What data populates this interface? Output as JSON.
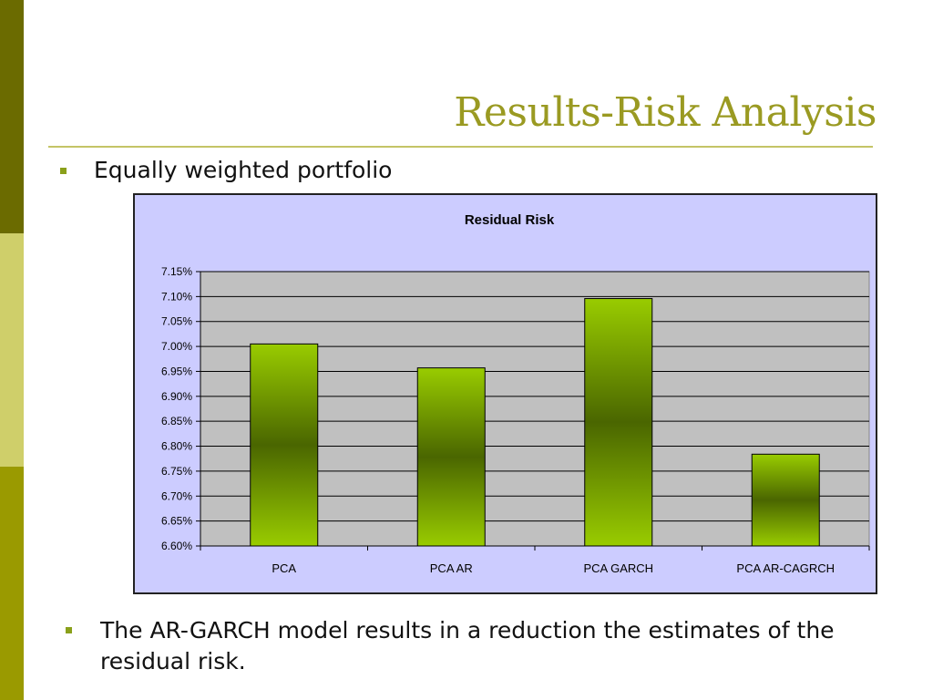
{
  "slide": {
    "title": "Results-Risk Analysis",
    "bullets": [
      "Equally weighted portfolio",
      "The AR-GARCH model results in a reduction the estimates of the residual risk."
    ]
  },
  "colors": {
    "title": "#9a9a22",
    "bullet": "#8aa01a",
    "chart_background": "#ccccff",
    "plot_background": "#c0c0c0",
    "bar_light": "#99cc00",
    "bar_dark": "#4a6600"
  },
  "chart_data": {
    "type": "bar",
    "title": "Residual Risk",
    "xlabel": "",
    "ylabel": "",
    "categories": [
      "PCA",
      "PCA AR",
      "PCA GARCH",
      "PCA AR-CAGRCH"
    ],
    "values": [
      7.005,
      6.957,
      7.096,
      6.784
    ],
    "ylim": [
      6.6,
      7.15
    ],
    "yticks": [
      "7.15%",
      "7.10%",
      "7.05%",
      "7.00%",
      "6.95%",
      "6.90%",
      "6.85%",
      "6.80%",
      "6.75%",
      "6.70%",
      "6.65%",
      "6.60%"
    ],
    "ytick_values": [
      7.15,
      7.1,
      7.05,
      7.0,
      6.95,
      6.9,
      6.85,
      6.8,
      6.75,
      6.7,
      6.65,
      6.6
    ],
    "grid": true,
    "legend": "none"
  }
}
